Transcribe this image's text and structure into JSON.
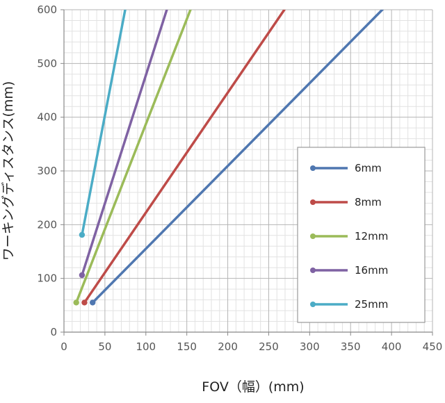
{
  "chart_data": {
    "type": "line",
    "title": "",
    "xlabel": "FOV（幅）(mm)",
    "ylabel": "ワーキングディスタンス(mm)",
    "xlim": [
      0,
      450
    ],
    "ylim": [
      0,
      600
    ],
    "xticks": [
      0,
      50,
      100,
      150,
      200,
      250,
      300,
      350,
      400,
      450
    ],
    "yticks": [
      0,
      100,
      200,
      300,
      400,
      500,
      600
    ],
    "grid": true,
    "legend": "right",
    "series": [
      {
        "name": "6mm",
        "color": "#4F77B0",
        "points": [
          [
            35,
            55
          ],
          [
            390,
            602
          ]
        ]
      },
      {
        "name": "8mm",
        "color": "#BE4B48",
        "points": [
          [
            25,
            55
          ],
          [
            270,
            602
          ]
        ]
      },
      {
        "name": "12mm",
        "color": "#9BBB59",
        "points": [
          [
            15,
            55
          ],
          [
            155,
            602
          ]
        ]
      },
      {
        "name": "16mm",
        "color": "#7F62A3",
        "points": [
          [
            22,
            106
          ],
          [
            126,
            602
          ]
        ]
      },
      {
        "name": "25mm",
        "color": "#4BACC6",
        "points": [
          [
            22,
            181
          ],
          [
            75,
            602
          ]
        ]
      }
    ]
  }
}
